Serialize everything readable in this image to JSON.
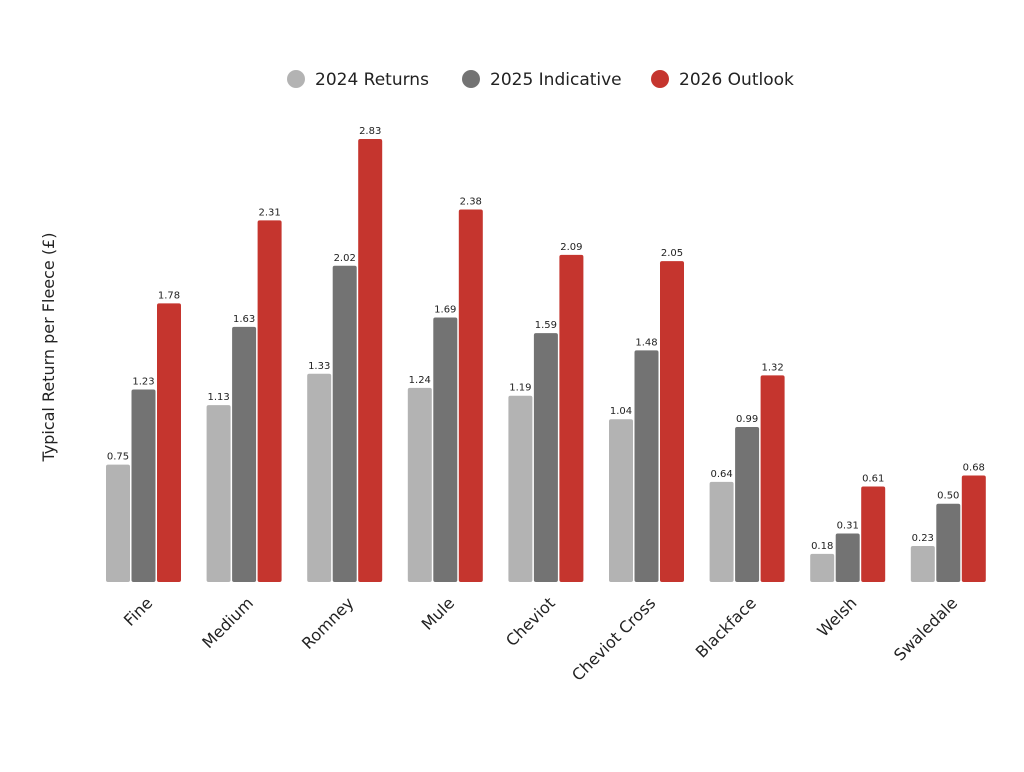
{
  "chart_data": {
    "type": "bar",
    "title": "",
    "xlabel": "",
    "ylabel": "Typical Return per Fleece (£)",
    "ylim": [
      0,
      2.83
    ],
    "grid": false,
    "legend_position": "top-center",
    "categories": [
      "Fine",
      "Medium",
      "Romney",
      "Mule",
      "Cheviot",
      "Cheviot Cross",
      "Blackface",
      "Welsh",
      "Swaledale"
    ],
    "series": [
      {
        "name": "2024 Returns",
        "color": "#b3b3b3",
        "values": [
          0.75,
          1.13,
          1.33,
          1.24,
          1.19,
          1.04,
          0.64,
          0.18,
          0.23
        ]
      },
      {
        "name": "2025 Indicative",
        "color": "#737373",
        "values": [
          1.23,
          1.63,
          2.02,
          1.69,
          1.59,
          1.48,
          0.99,
          0.31,
          0.5
        ]
      },
      {
        "name": "2026 Outlook",
        "color": "#c5352e",
        "values": [
          1.78,
          2.31,
          2.83,
          2.38,
          2.09,
          2.05,
          1.32,
          0.61,
          0.68
        ]
      }
    ]
  }
}
